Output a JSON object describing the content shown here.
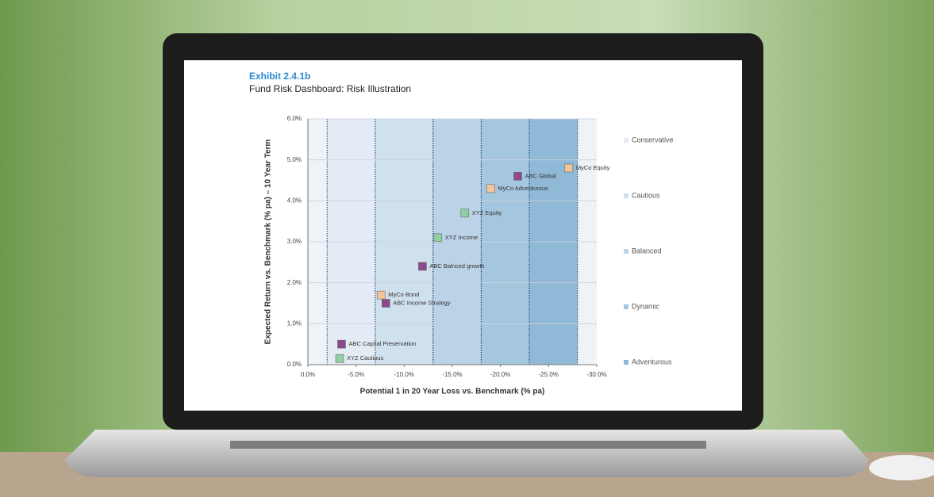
{
  "chart_data": {
    "type": "scatter",
    "exhibit": "Exhibit 2.4.1b",
    "title": "Fund Risk Dashboard: Risk Illustration",
    "x_label": "Potential 1 in 20 Year Loss vs. Benchmark (% pa)",
    "y_label": "Expected Return vs. Benchmark (% pa) – 10 Year Term",
    "xlim": [
      0,
      -30
    ],
    "ylim": [
      0,
      6
    ],
    "xticks": [
      {
        "value": 0,
        "label": "0.0%"
      },
      {
        "value": -5,
        "label": "-5.0%"
      },
      {
        "value": -10,
        "label": "-10.0%"
      },
      {
        "value": -15,
        "label": "-15.0%"
      },
      {
        "value": -20,
        "label": "-20.0%"
      },
      {
        "value": -25,
        "label": "-25.0%"
      },
      {
        "value": -30,
        "label": "-30.0%"
      }
    ],
    "yticks": [
      {
        "value": 0,
        "label": "0.0%"
      },
      {
        "value": 1,
        "label": "1.0%"
      },
      {
        "value": 2,
        "label": "2.0%"
      },
      {
        "value": 3,
        "label": "3.0%"
      },
      {
        "value": 4,
        "label": "4.0%"
      },
      {
        "value": 5,
        "label": "5.0%"
      },
      {
        "value": 6,
        "label": "6.0%"
      }
    ],
    "grid": true,
    "bands": [
      {
        "name": "Conservative",
        "color": "#e3ecf4",
        "range": [
          -2,
          -7
        ]
      },
      {
        "name": "Cautious",
        "color": "#d0e1ee",
        "range": [
          -7,
          -13
        ]
      },
      {
        "name": "Balanced",
        "color": "#bad3e7",
        "range": [
          -13,
          -18
        ]
      },
      {
        "name": "Dynamic",
        "color": "#a5c6df",
        "range": [
          -18,
          -23
        ]
      },
      {
        "name": "Adventurous",
        "color": "#90b8d7",
        "range": [
          -23,
          -28
        ]
      }
    ],
    "point_labels": [
      "MyCo Equity",
      "ABC Global",
      "MyCo Adventurous",
      "XYZ Equity",
      "XYZ Income",
      "ABC Balnced growth",
      "MyCo Bond",
      "ABC Income Strategy",
      "ABC Capital Preservation",
      "XYZ Cautious"
    ],
    "x": [
      -27.1,
      -21.8,
      -19.0,
      -16.3,
      -13.5,
      -11.9,
      -7.6,
      -8.1,
      -3.5,
      -3.3
    ],
    "values": [
      4.8,
      4.6,
      4.3,
      3.7,
      3.1,
      2.4,
      1.7,
      1.5,
      0.5,
      0.15
    ],
    "point_colors": [
      "#f4c59b",
      "#8c4a8c",
      "#f4c59b",
      "#92cfa3",
      "#92cfa3",
      "#8c4a8c",
      "#f4c59b",
      "#8c4a8c",
      "#8c4a8c",
      "#92cfa3"
    ]
  }
}
